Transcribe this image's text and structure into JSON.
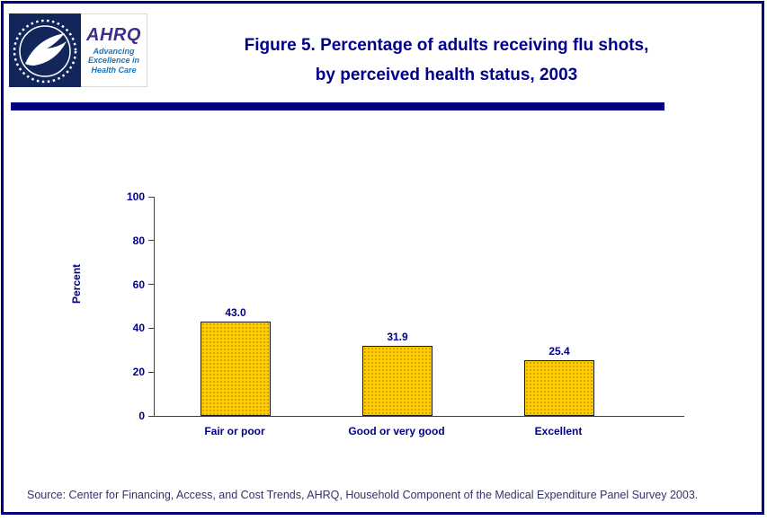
{
  "header": {
    "logo": {
      "ahrq": "AHRQ",
      "tagline1": "Advancing",
      "tagline2": "Excellence in",
      "tagline3": "Health Care"
    },
    "title_line1": "Figure 5. Percentage of adults receiving flu shots,",
    "title_line2": "by perceived health status, 2003"
  },
  "chart_data": {
    "type": "bar",
    "title": "Figure 5. Percentage of adults receiving flu shots, by perceived health status, 2003",
    "categories": [
      "Fair or poor",
      "Good or very good",
      "Excellent"
    ],
    "values": [
      43.0,
      31.9,
      25.4
    ],
    "value_labels": [
      "43.0",
      "31.9",
      "25.4"
    ],
    "xlabel": "",
    "ylabel": "Percent",
    "ylim": [
      0,
      100
    ],
    "yticks": [
      0,
      20,
      40,
      60,
      80,
      100
    ],
    "grid": false,
    "legend": false,
    "bar_color": "#FFCC00"
  },
  "footer": {
    "source": "Source: Center for Financing, Access, and Cost Trends, AHRQ, Household Component of the Medical Expenditure Panel Survey 2003."
  },
  "colors": {
    "accent": "#00008B",
    "divider": "#000080",
    "bar": "#FFCC00",
    "bar_border": "#1a1a1a"
  }
}
